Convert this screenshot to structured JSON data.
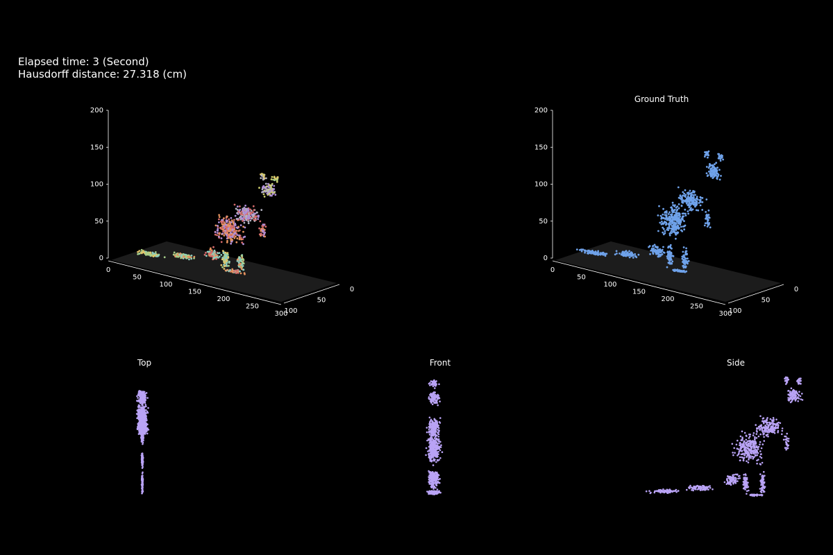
{
  "stats": {
    "elapsed": "Elapsed time: 3 (Second)",
    "hausdorff": "Hausdorff distance: 27.318 (cm)"
  },
  "colors": {
    "background": "#000000",
    "floor": "#1c1c1c",
    "axis": "#ffffff",
    "ground_truth_points": "#6fa2ea",
    "projection_points": "#b9a3f5",
    "prediction_palette": [
      "#e3c56a",
      "#a7cf8a",
      "#8fd0c0",
      "#e4925f",
      "#d46a6a",
      "#b08fd8",
      "#b4b4c2",
      "#cfcf6e"
    ]
  },
  "chart_data": [
    {
      "type": "scatter",
      "name": "prediction-3d",
      "title": "",
      "projection": "3d",
      "x_ticks": [
        "0",
        "50",
        "100",
        "150",
        "200",
        "250",
        "300"
      ],
      "y_ticks": [
        "100",
        "50",
        "0"
      ],
      "z_ticks": [
        "0",
        "50",
        "100",
        "150",
        "200"
      ],
      "xlim": [
        0,
        300
      ],
      "ylim": [
        0,
        100
      ],
      "zlim": [
        0,
        200
      ],
      "grid": false,
      "point_style": "multicolor clusters"
    },
    {
      "type": "scatter",
      "name": "ground-truth-3d",
      "title": "Ground Truth",
      "projection": "3d",
      "x_ticks": [
        "0",
        "50",
        "100",
        "150",
        "200",
        "250",
        "300"
      ],
      "y_ticks": [
        "100",
        "50",
        "0"
      ],
      "z_ticks": [
        "0",
        "50",
        "100",
        "150",
        "200"
      ],
      "xlim": [
        0,
        300
      ],
      "ylim": [
        0,
        100
      ],
      "zlim": [
        0,
        200
      ],
      "grid": false
    },
    {
      "type": "scatter",
      "name": "top-view",
      "title": "Top",
      "axes": "off"
    },
    {
      "type": "scatter",
      "name": "front-view",
      "title": "Front",
      "axes": "off"
    },
    {
      "type": "scatter",
      "name": "side-view",
      "title": "Side",
      "axes": "off"
    }
  ]
}
